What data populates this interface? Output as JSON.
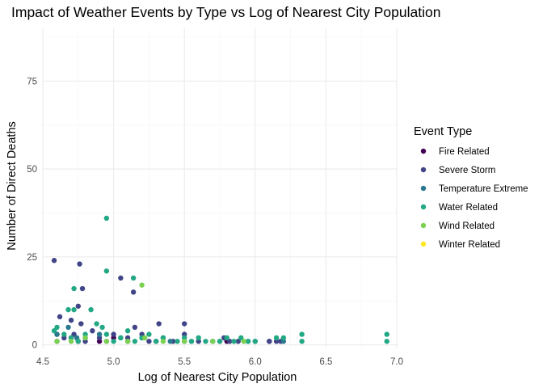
{
  "chart_data": {
    "type": "scatter",
    "title": "Impact of Weather Events by Type vs Log of Nearest City Population",
    "xlabel": "Log of Nearest City Population",
    "ylabel": "Number of Direct Deaths",
    "xlim": [
      4.5,
      7.0
    ],
    "ylim": [
      -1,
      90
    ],
    "x_ticks": [
      "4.5",
      "5.0",
      "5.5",
      "6.0",
      "6.5",
      "7.0"
    ],
    "y_ticks": [
      "0",
      "25",
      "50",
      "75"
    ],
    "grid": true,
    "legend_position": "right",
    "legend_title": "Event Type",
    "series": [
      {
        "name": "Fire Related",
        "color": "#440154",
        "points": [
          [
            4.6,
            1
          ],
          [
            4.7,
            2
          ],
          [
            4.75,
            1
          ],
          [
            4.9,
            1
          ],
          [
            5.0,
            2
          ],
          [
            5.1,
            1
          ],
          [
            5.3,
            1
          ],
          [
            5.5,
            1
          ],
          [
            5.8,
            1
          ],
          [
            6.1,
            1
          ]
        ]
      },
      {
        "name": "Severe Storm",
        "color": "#414487",
        "points": [
          [
            4.58,
            24
          ],
          [
            4.76,
            23
          ],
          [
            4.78,
            16
          ],
          [
            5.05,
            19
          ],
          [
            5.14,
            15
          ],
          [
            4.75,
            11
          ],
          [
            4.77,
            6
          ],
          [
            4.62,
            8
          ],
          [
            4.7,
            7
          ],
          [
            5.15,
            5
          ],
          [
            5.32,
            6
          ],
          [
            5.5,
            6
          ],
          [
            4.6,
            3
          ],
          [
            4.65,
            2
          ],
          [
            4.72,
            3
          ],
          [
            4.8,
            1
          ],
          [
            4.85,
            4
          ],
          [
            4.9,
            2
          ],
          [
            4.95,
            1
          ],
          [
            5.0,
            3
          ],
          [
            5.1,
            2
          ],
          [
            5.2,
            3
          ],
          [
            5.25,
            1
          ],
          [
            5.35,
            2
          ],
          [
            5.42,
            1
          ],
          [
            5.5,
            3
          ],
          [
            5.6,
            1
          ],
          [
            5.7,
            1
          ],
          [
            5.78,
            2
          ],
          [
            5.82,
            1
          ],
          [
            5.88,
            1
          ],
          [
            6.0,
            1
          ],
          [
            6.1,
            1
          ],
          [
            6.15,
            1
          ],
          [
            6.18,
            1
          ]
        ]
      },
      {
        "name": "Temperature Extreme",
        "color": "#2a788e",
        "points": [
          [
            4.6,
            3
          ],
          [
            4.68,
            5
          ],
          [
            4.74,
            2
          ],
          [
            4.8,
            2
          ],
          [
            4.9,
            3
          ],
          [
            5.05,
            2
          ],
          [
            5.2,
            2
          ],
          [
            5.4,
            1
          ],
          [
            5.55,
            1
          ],
          [
            5.75,
            1
          ],
          [
            5.95,
            1
          ],
          [
            6.2,
            1
          ]
        ]
      },
      {
        "name": "Water Related",
        "color": "#22a884",
        "points": [
          [
            4.95,
            36
          ],
          [
            4.95,
            21
          ],
          [
            5.14,
            19
          ],
          [
            4.72,
            16
          ],
          [
            4.72,
            10
          ],
          [
            4.68,
            10
          ],
          [
            4.84,
            10
          ],
          [
            4.6,
            5
          ],
          [
            4.58,
            4
          ],
          [
            4.65,
            3
          ],
          [
            4.7,
            2
          ],
          [
            4.75,
            1
          ],
          [
            4.8,
            3
          ],
          [
            4.88,
            6
          ],
          [
            4.92,
            5
          ],
          [
            4.95,
            3
          ],
          [
            5.0,
            1
          ],
          [
            5.05,
            2
          ],
          [
            5.1,
            4
          ],
          [
            5.15,
            1
          ],
          [
            5.2,
            2
          ],
          [
            5.25,
            3
          ],
          [
            5.3,
            1
          ],
          [
            5.35,
            2
          ],
          [
            5.45,
            1
          ],
          [
            5.5,
            2
          ],
          [
            5.55,
            1
          ],
          [
            5.6,
            2
          ],
          [
            5.65,
            1
          ],
          [
            5.7,
            1
          ],
          [
            5.75,
            1
          ],
          [
            5.8,
            2
          ],
          [
            5.85,
            1
          ],
          [
            5.9,
            2
          ],
          [
            5.95,
            1
          ],
          [
            6.0,
            1
          ],
          [
            6.15,
            2
          ],
          [
            6.2,
            2
          ],
          [
            6.33,
            3
          ],
          [
            6.33,
            1
          ],
          [
            6.93,
            3
          ],
          [
            6.93,
            1
          ]
        ]
      },
      {
        "name": "Wind Related",
        "color": "#7ad151",
        "points": [
          [
            5.2,
            17
          ],
          [
            4.6,
            1
          ],
          [
            4.7,
            1
          ],
          [
            4.8,
            2
          ],
          [
            4.95,
            1
          ],
          [
            5.1,
            1
          ],
          [
            5.22,
            2
          ],
          [
            5.35,
            1
          ],
          [
            5.5,
            1
          ],
          [
            5.7,
            1
          ],
          [
            5.92,
            1
          ]
        ]
      },
      {
        "name": "Winter Related",
        "color": "#fde725",
        "points": []
      }
    ]
  }
}
